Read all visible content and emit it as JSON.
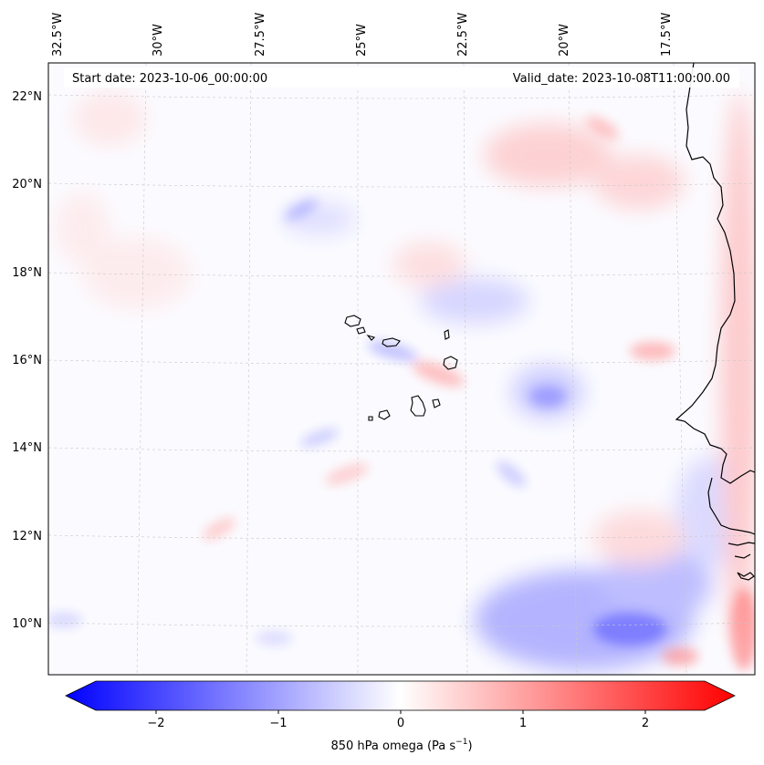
{
  "header": {
    "start_date": "Start date: 2023-10-06_00:00:00",
    "valid_date": "Valid_date: 2023-10-08T11:00:00.00"
  },
  "map": {
    "lon_labels": [
      "32.5°W",
      "30°W",
      "27.5°W",
      "25°W",
      "22.5°W",
      "20°W",
      "17.5°W"
    ],
    "lat_labels": [
      "22°N",
      "20°N",
      "18°N",
      "16°N",
      "14°N",
      "12°N",
      "10°N"
    ],
    "grid": true
  },
  "colorbar": {
    "label": "850 hPa omega (Pa s",
    "label_sup": "−1",
    "label_close": ")",
    "ticks": [
      "−2",
      "−1",
      "0",
      "1",
      "2"
    ],
    "range": [
      -2.6,
      2.6
    ],
    "colors": {
      "negative": "#0000ff",
      "zero": "#ffffff",
      "positive": "#ff0000"
    }
  }
}
